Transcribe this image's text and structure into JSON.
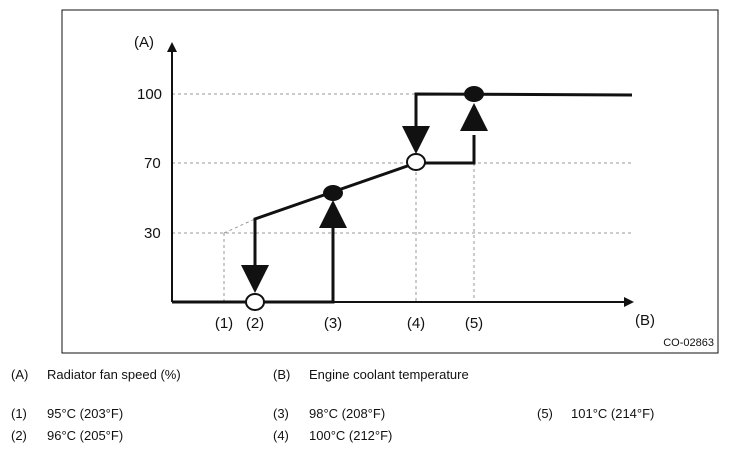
{
  "figure_code": "CO-02863",
  "axes": {
    "y_label": "(A)",
    "x_label": "(B)",
    "y_ticks": [
      "100",
      "70",
      "30"
    ],
    "x_marks": [
      "(1)",
      "(2)",
      "(3)",
      "(4)",
      "(5)"
    ]
  },
  "chart_data": {
    "type": "line",
    "y_ticks": [
      30,
      70,
      100
    ],
    "x_marks": [
      "(1)",
      "(2)",
      "(3)",
      "(4)",
      "(5)"
    ],
    "nodes": [
      {
        "at": "(2)",
        "level": 0,
        "marker": "open-circle"
      },
      {
        "at": "(3)",
        "level": 50,
        "marker": "filled-circle"
      },
      {
        "at": "(4)",
        "level": 70,
        "marker": "open-circle"
      },
      {
        "at": "(5)",
        "level": 100,
        "marker": "filled-circle"
      }
    ],
    "transitions": [
      {
        "at": "(2)",
        "direction": "down",
        "from": 36,
        "to": 0
      },
      {
        "at": "(3)",
        "direction": "up",
        "from": 0,
        "to": 50
      },
      {
        "at": "(4)",
        "direction": "down",
        "from": 100,
        "to": 70
      },
      {
        "at": "(5)",
        "direction": "up",
        "from": 70,
        "to": 100
      }
    ]
  },
  "legend": {
    "axis_entries": [
      {
        "key": "(A)",
        "text": "Radiator fan speed (%)"
      },
      {
        "key": "(B)",
        "text": "Engine coolant temperature"
      }
    ],
    "point_entries": [
      {
        "key": "(1)",
        "text": "95°C (203°F)"
      },
      {
        "key": "(2)",
        "text": "96°C (205°F)"
      },
      {
        "key": "(3)",
        "text": "98°C (208°F)"
      },
      {
        "key": "(4)",
        "text": "100°C (212°F)"
      },
      {
        "key": "(5)",
        "text": "101°C (214°F)"
      }
    ]
  }
}
